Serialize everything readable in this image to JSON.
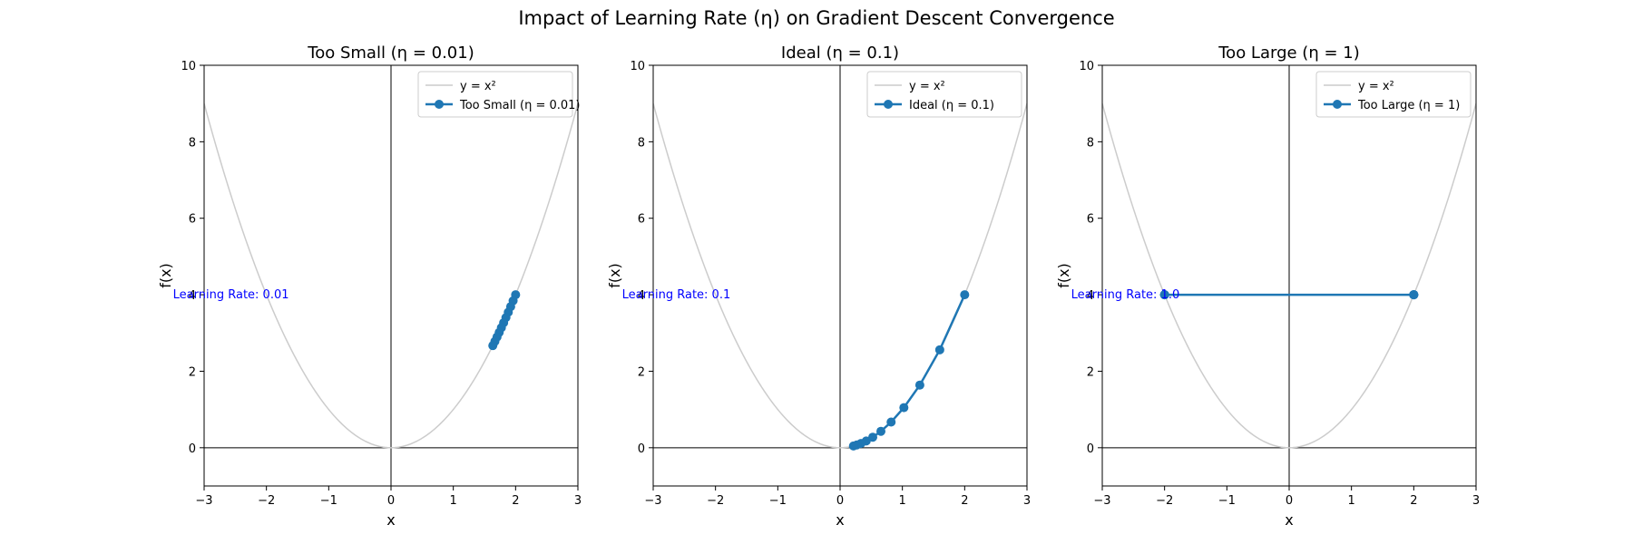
{
  "chart_data": {
    "suptitle": "Impact of Learning Rate (η) on Gradient Descent Convergence",
    "panels": [
      {
        "type": "line",
        "title": "Too Small (η = 0.01)",
        "xlabel": "x",
        "ylabel": "f(x)",
        "xlim": [
          -3,
          3
        ],
        "ylim": [
          -1,
          10
        ],
        "xticks": [
          "−3",
          "−2",
          "−1",
          "0",
          "1",
          "2",
          "3"
        ],
        "yticks": [
          "0",
          "2",
          "4",
          "6",
          "8",
          "10"
        ],
        "grid": false,
        "legend_position": "top-right",
        "annotation": "Learning Rate: 0.01",
        "series": [
          {
            "name": "y = x²",
            "function": "x^2",
            "color": "#cccccc"
          },
          {
            "name": "Too Small (η = 0.01)",
            "color": "#1f77b4",
            "x": [
              2.0,
              1.96,
              1.9208,
              1.8824,
              1.8447,
              1.8078,
              1.7717,
              1.7363,
              1.7016,
              1.6675,
              1.6342
            ],
            "y": [
              4.0,
              3.8416,
              3.6895,
              3.5434,
              3.4031,
              3.2683,
              3.1389,
              3.0146,
              2.8952,
              2.7806,
              2.6705
            ]
          }
        ]
      },
      {
        "type": "line",
        "title": "Ideal (η = 0.1)",
        "xlabel": "x",
        "ylabel": "f(x)",
        "xlim": [
          -3,
          3
        ],
        "ylim": [
          -1,
          10
        ],
        "xticks": [
          "−3",
          "−2",
          "−1",
          "0",
          "1",
          "2",
          "3"
        ],
        "yticks": [
          "0",
          "2",
          "4",
          "6",
          "8",
          "10"
        ],
        "grid": false,
        "legend_position": "top-right",
        "annotation": "Learning Rate: 0.1",
        "series": [
          {
            "name": "y = x²",
            "function": "x^2",
            "color": "#cccccc"
          },
          {
            "name": "Ideal (η = 0.1)",
            "color": "#1f77b4",
            "x": [
              2.0,
              1.6,
              1.28,
              1.024,
              0.8192,
              0.6554,
              0.5243,
              0.4194,
              0.3355,
              0.2684,
              0.2147
            ],
            "y": [
              4.0,
              2.56,
              1.6384,
              1.0486,
              0.6711,
              0.4295,
              0.2749,
              0.1759,
              0.1126,
              0.0721,
              0.0461
            ]
          }
        ]
      },
      {
        "type": "line",
        "title": "Too Large (η = 1)",
        "xlabel": "x",
        "ylabel": "f(x)",
        "xlim": [
          -3,
          3
        ],
        "ylim": [
          -1,
          10
        ],
        "xticks": [
          "−3",
          "−2",
          "−1",
          "0",
          "1",
          "2",
          "3"
        ],
        "yticks": [
          "0",
          "2",
          "4",
          "6",
          "8",
          "10"
        ],
        "grid": false,
        "legend_position": "top-right",
        "annotation": "Learning Rate: 1.0",
        "series": [
          {
            "name": "y = x²",
            "function": "x^2",
            "color": "#cccccc"
          },
          {
            "name": "Too Large (η = 1)",
            "color": "#1f77b4",
            "x": [
              2,
              -2,
              2,
              -2,
              2,
              -2,
              2,
              -2,
              2,
              -2,
              2
            ],
            "y": [
              4,
              4,
              4,
              4,
              4,
              4,
              4,
              4,
              4,
              4,
              4
            ]
          }
        ]
      }
    ]
  }
}
